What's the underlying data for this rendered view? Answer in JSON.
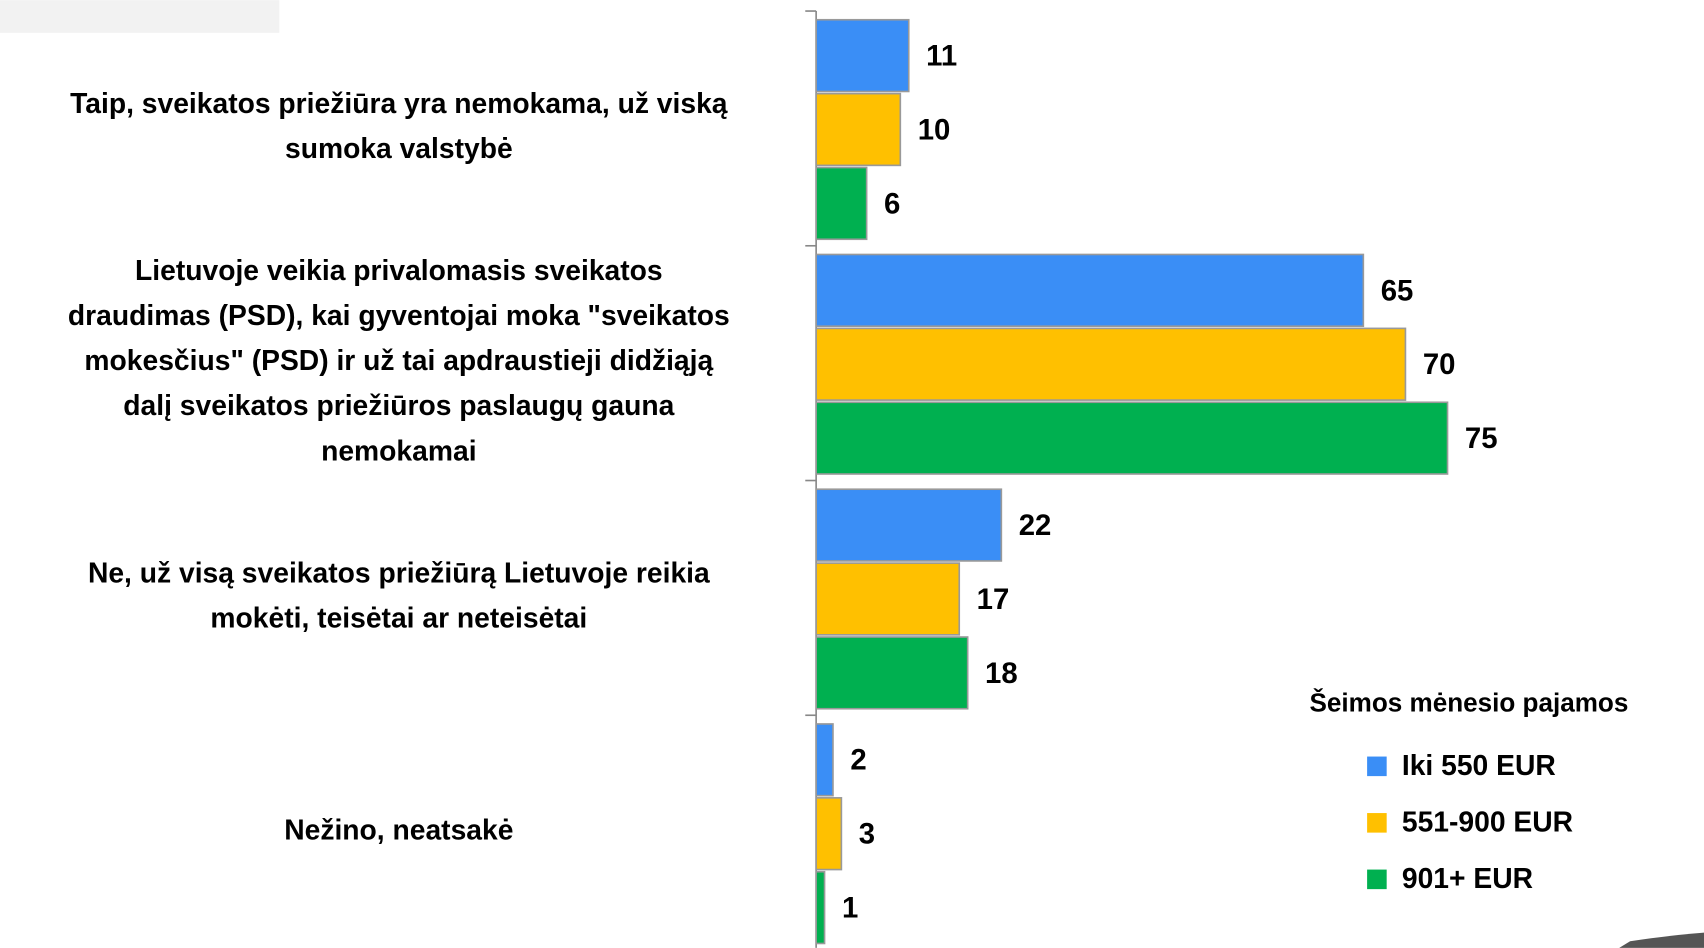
{
  "chart_data": {
    "type": "barh",
    "categories": [
      "Taip, sveikatos priežiūra yra nemokama, už viską\nsumoka valstybė",
      "Lietuvoje veikia privalomasis sveikatos\ndraudimas (PSD), kai gyventojai moka \"sveikatos\nmokesčius\" (PSD) ir už tai apdraustieji didžiąją\ndalį sveikatos priežiūros paslaugų gauna\nnemokamai",
      "Ne, už visą sveikatos priežiūrą Lietuvoje reikia\nmokėti, teisėtai ar neteisėtai",
      "Nežino, neatsakė"
    ],
    "series": [
      {
        "name": "Iki 550 EUR",
        "color": "#3a8ef6",
        "values": [
          11,
          65,
          22,
          2
        ]
      },
      {
        "name": "551-900 EUR",
        "color": "#ffc000",
        "values": [
          10,
          70,
          17,
          3
        ]
      },
      {
        "name": "901+ EUR",
        "color": "#00b050",
        "values": [
          6,
          75,
          18,
          1
        ]
      }
    ],
    "legend_title": "Šeimos mėnesio pajamos",
    "legend": "bottom-right"
  }
}
